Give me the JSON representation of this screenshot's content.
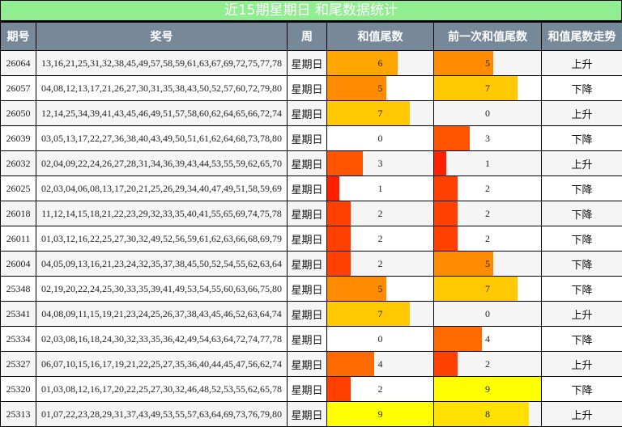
{
  "title": "近15期星期日 和尾数据统计",
  "headers": [
    "期号",
    "奖号",
    "周",
    "和值尾数",
    "前一次和值尾数",
    "和值尾数走势"
  ],
  "colors": {
    "title_bg": "#90ee90",
    "header_bg": "#778899",
    "0": "transparent",
    "1": "#ff2000",
    "2": "#ff4000",
    "3": "#ff5500",
    "4": "#ff6a00",
    "5": "#ff8c00",
    "6": "#ffa500",
    "7": "#ffc800",
    "8": "#ffe000",
    "9": "#ffff00"
  },
  "rows": [
    {
      "issue": "26064",
      "numbers": "13,16,21,25,31,32,38,45,49,57,58,59,61,63,67,69,72,75,77,78",
      "week": "星期日",
      "tail": 6,
      "prev": 5,
      "trend": "上升"
    },
    {
      "issue": "26057",
      "numbers": "04,08,12,13,17,21,26,27,30,31,35,38,43,50,52,57,60,72,79,80",
      "week": "星期日",
      "tail": 5,
      "prev": 7,
      "trend": "下降"
    },
    {
      "issue": "26050",
      "numbers": "12,14,25,34,39,41,43,45,46,49,51,57,58,60,62,64,65,66,72,74",
      "week": "星期日",
      "tail": 7,
      "prev": 0,
      "trend": "上升"
    },
    {
      "issue": "26039",
      "numbers": "03,05,13,17,22,27,36,38,40,43,49,50,51,61,62,64,68,73,78,80",
      "week": "星期日",
      "tail": 0,
      "prev": 3,
      "trend": "下降"
    },
    {
      "issue": "26032",
      "numbers": "02,04,09,22,24,26,27,28,31,34,36,39,43,44,53,55,59,62,65,70",
      "week": "星期日",
      "tail": 3,
      "prev": 1,
      "trend": "上升"
    },
    {
      "issue": "26025",
      "numbers": "02,03,04,06,08,13,17,20,21,25,26,29,34,40,47,49,51,58,59,69",
      "week": "星期日",
      "tail": 1,
      "prev": 2,
      "trend": "下降"
    },
    {
      "issue": "26018",
      "numbers": "11,12,14,15,18,21,22,23,29,32,33,35,40,41,55,65,69,74,75,78",
      "week": "星期日",
      "tail": 2,
      "prev": 2,
      "trend": "下降"
    },
    {
      "issue": "26011",
      "numbers": "01,03,12,16,22,25,27,30,32,49,52,56,59,61,62,63,66,68,69,79",
      "week": "星期日",
      "tail": 2,
      "prev": 2,
      "trend": "下降"
    },
    {
      "issue": "26004",
      "numbers": "04,05,09,13,16,21,23,24,32,35,37,38,45,50,52,54,55,62,63,64",
      "week": "星期日",
      "tail": 2,
      "prev": 5,
      "trend": "下降"
    },
    {
      "issue": "25348",
      "numbers": "02,19,20,22,24,25,30,33,35,39,41,49,53,54,55,60,63,66,75,80",
      "week": "星期日",
      "tail": 5,
      "prev": 7,
      "trend": "下降"
    },
    {
      "issue": "25341",
      "numbers": "04,08,09,11,15,19,21,23,24,25,26,37,38,43,45,46,52,63,64,74",
      "week": "星期日",
      "tail": 7,
      "prev": 0,
      "trend": "上升"
    },
    {
      "issue": "25334",
      "numbers": "02,03,08,16,18,24,30,32,33,35,36,42,49,54,63,64,72,74,77,78",
      "week": "星期日",
      "tail": 0,
      "prev": 4,
      "trend": "下降"
    },
    {
      "issue": "25327",
      "numbers": "06,07,10,15,16,17,19,21,22,25,27,35,36,40,44,45,47,56,62,74",
      "week": "星期日",
      "tail": 4,
      "prev": 2,
      "trend": "上升"
    },
    {
      "issue": "25320",
      "numbers": "01,03,08,12,16,17,20,22,25,27,30,32,46,48,52,53,55,62,65,78",
      "week": "星期日",
      "tail": 2,
      "prev": 9,
      "trend": "下降"
    },
    {
      "issue": "25313",
      "numbers": "01,07,22,23,28,29,31,37,43,49,53,55,57,63,64,69,73,76,79,80",
      "week": "星期日",
      "tail": 9,
      "prev": 8,
      "trend": "上升"
    }
  ]
}
